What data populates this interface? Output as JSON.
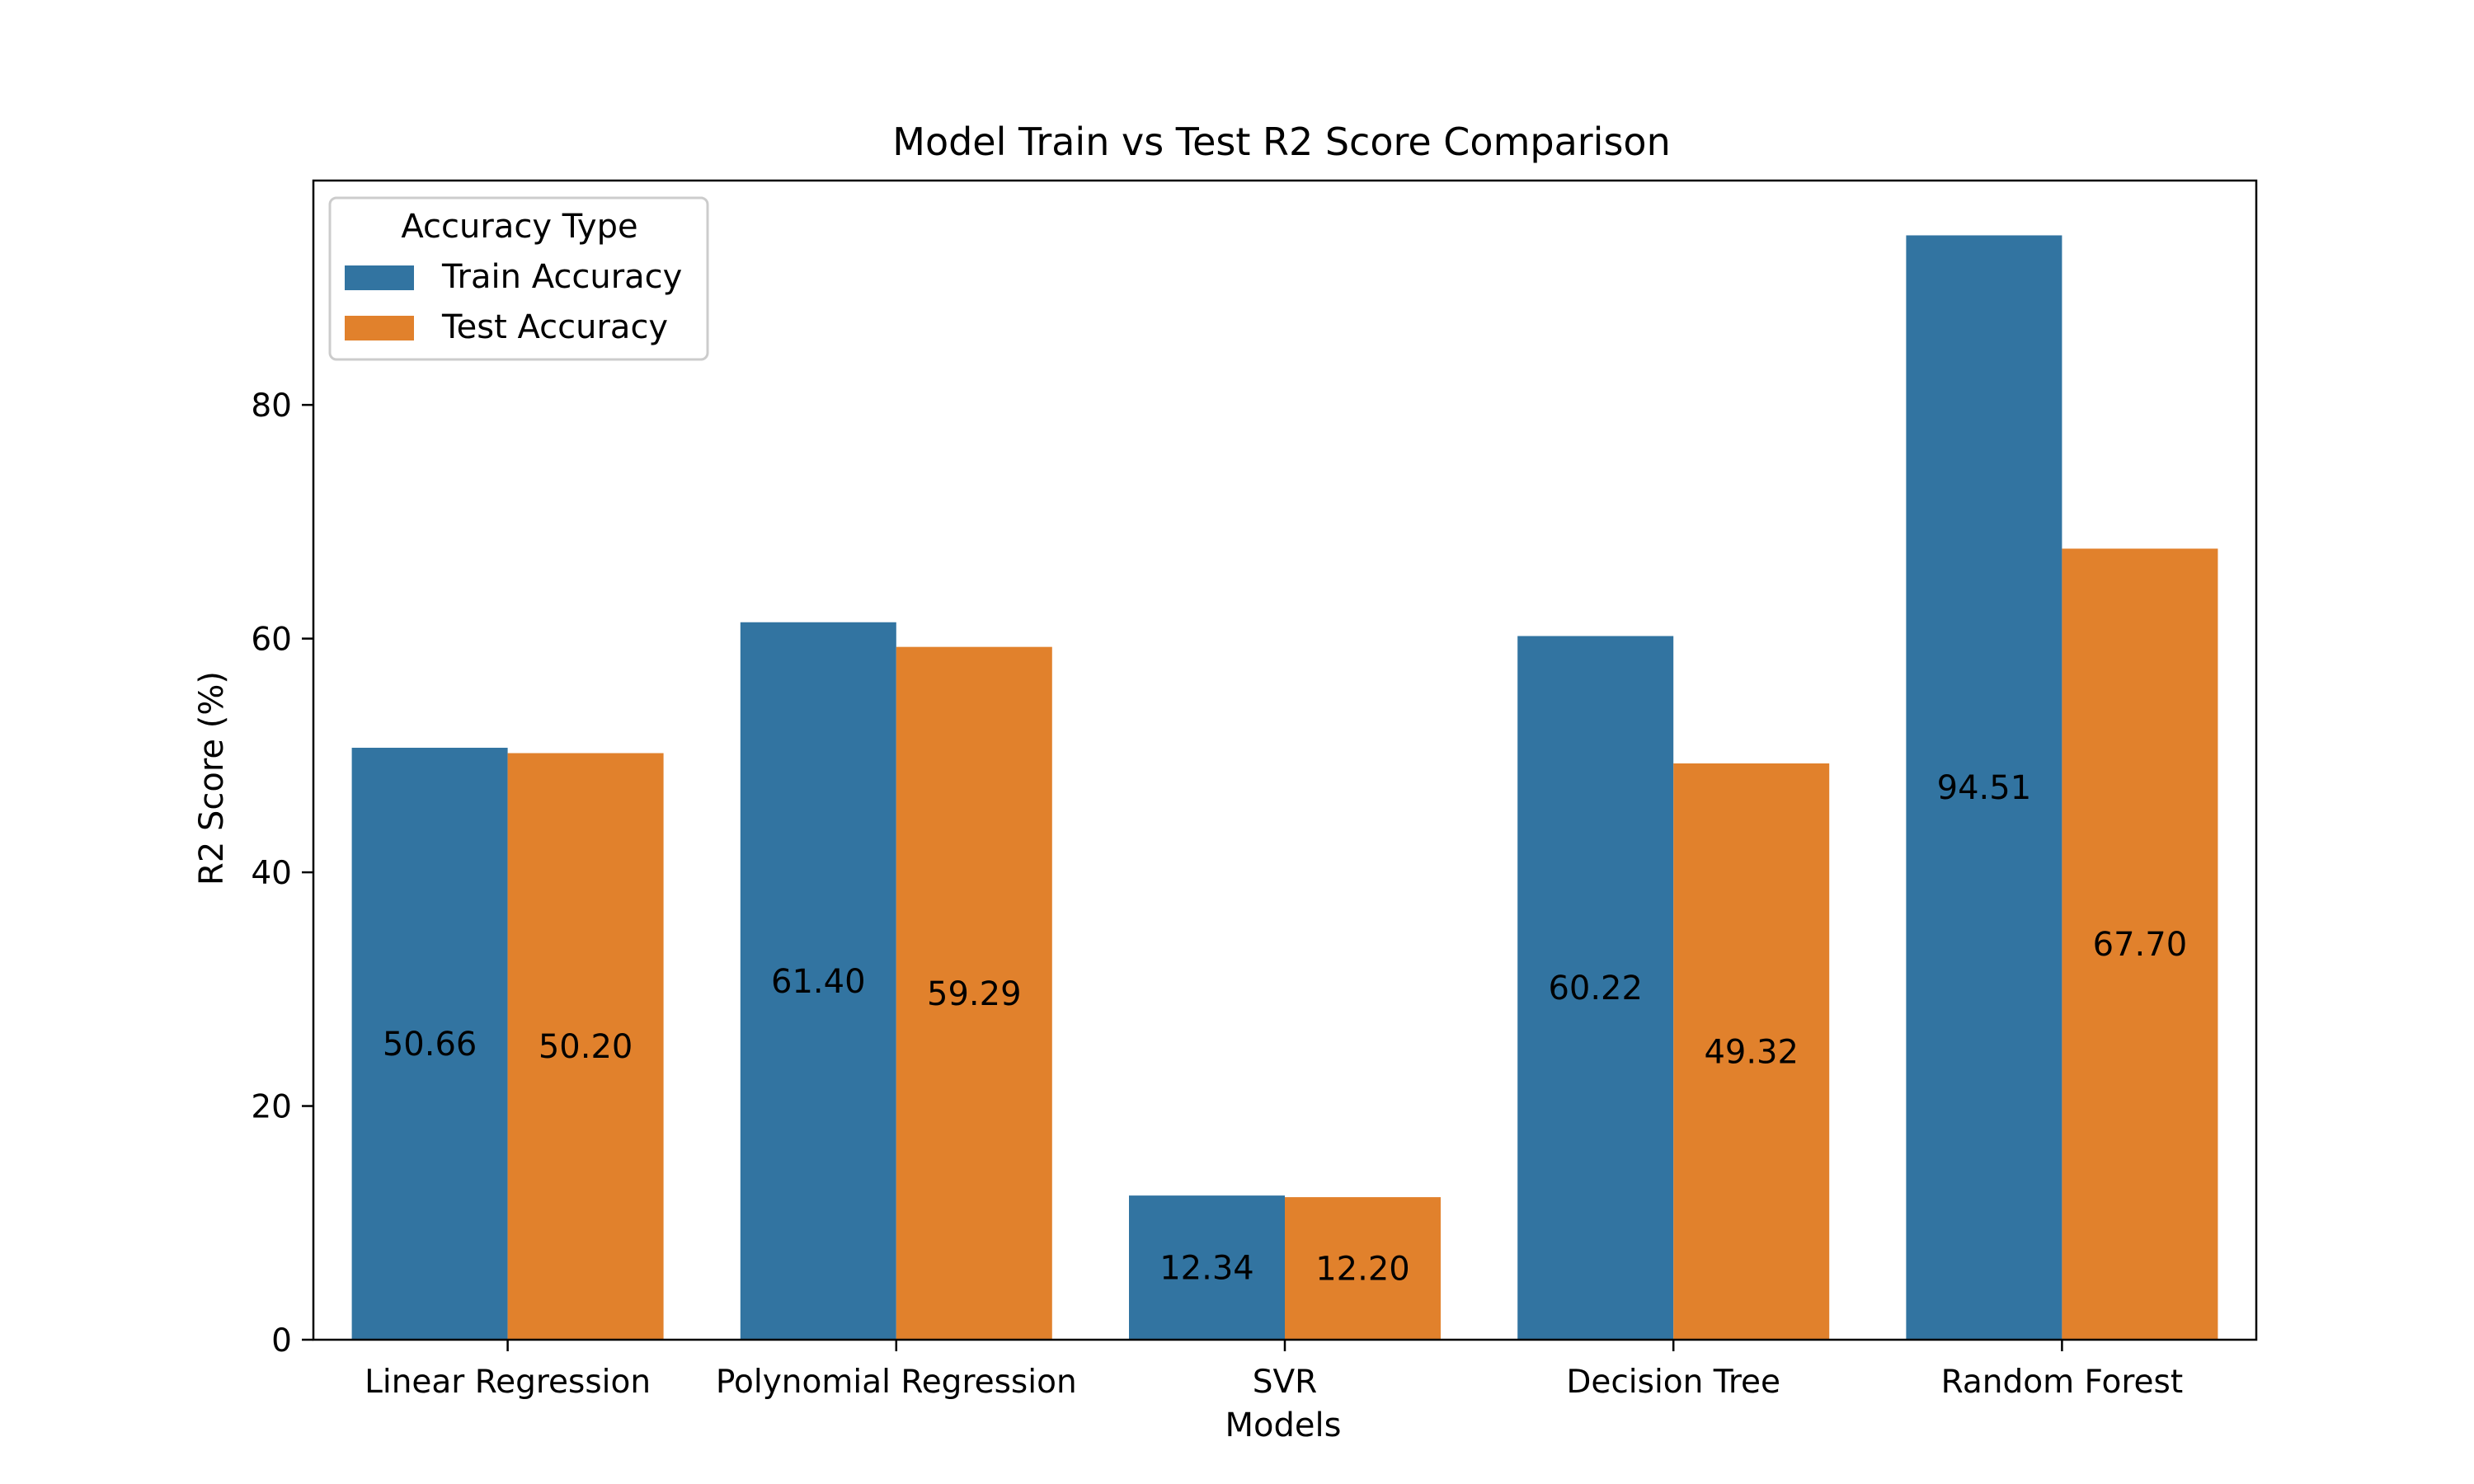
{
  "chart_data": {
    "type": "bar",
    "title": "Model Train vs Test R2 Score Comparison",
    "xlabel": "Models",
    "ylabel": "R2 Score (%)",
    "categories": [
      "Linear Regression",
      "Polynomial Regression",
      "SVR",
      "Decision Tree",
      "Random Forest"
    ],
    "series": [
      {
        "name": "Train Accuracy",
        "color": "#3274a1",
        "values": [
          50.66,
          61.4,
          12.34,
          60.22,
          94.51
        ],
        "labels": [
          "50.66",
          "61.40",
          "12.34",
          "60.22",
          "94.51"
        ]
      },
      {
        "name": "Test Accuracy",
        "color": "#e1812c",
        "values": [
          50.2,
          59.29,
          12.2,
          49.32,
          67.7
        ],
        "labels": [
          "50.20",
          "59.29",
          "12.20",
          "49.32",
          "67.70"
        ]
      }
    ],
    "ylim": [
      0,
      99.2
    ],
    "yticks": [
      0,
      20,
      40,
      60,
      80
    ],
    "legend": {
      "title": "Accuracy Type",
      "position": "top-left"
    },
    "grid": false
  }
}
